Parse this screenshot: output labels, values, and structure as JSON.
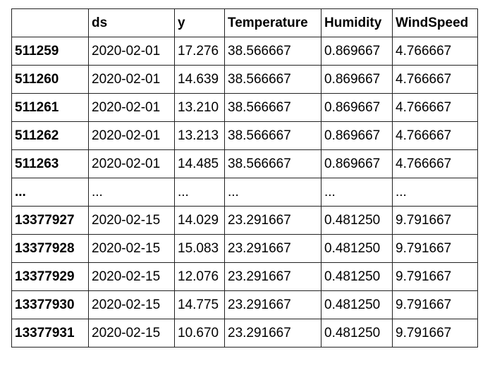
{
  "table": {
    "columns": [
      "",
      "ds",
      "y",
      "Temperature",
      "Humidity",
      "WindSpeed"
    ],
    "rows": [
      [
        "511259",
        "2020-02-01",
        "17.276",
        "38.566667",
        "0.869667",
        "4.766667"
      ],
      [
        "511260",
        "2020-02-01",
        "14.639",
        "38.566667",
        "0.869667",
        "4.766667"
      ],
      [
        "511261",
        "2020-02-01",
        "13.210",
        "38.566667",
        "0.869667",
        "4.766667"
      ],
      [
        "511262",
        "2020-02-01",
        "13.213",
        "38.566667",
        "0.869667",
        "4.766667"
      ],
      [
        "511263",
        "2020-02-01",
        "14.485",
        "38.566667",
        "0.869667",
        "4.766667"
      ],
      [
        "...",
        "...",
        "...",
        "...",
        "...",
        "..."
      ],
      [
        "13377927",
        "2020-02-15",
        "14.029",
        "23.291667",
        "0.481250",
        "9.791667"
      ],
      [
        "13377928",
        "2020-02-15",
        "15.083",
        "23.291667",
        "0.481250",
        "9.791667"
      ],
      [
        "13377929",
        "2020-02-15",
        "12.076",
        "23.291667",
        "0.481250",
        "9.791667"
      ],
      [
        "13377930",
        "2020-02-15",
        "14.775",
        "23.291667",
        "0.481250",
        "9.791667"
      ],
      [
        "13377931",
        "2020-02-15",
        "10.670",
        "23.291667",
        "0.481250",
        "9.791667"
      ]
    ]
  }
}
